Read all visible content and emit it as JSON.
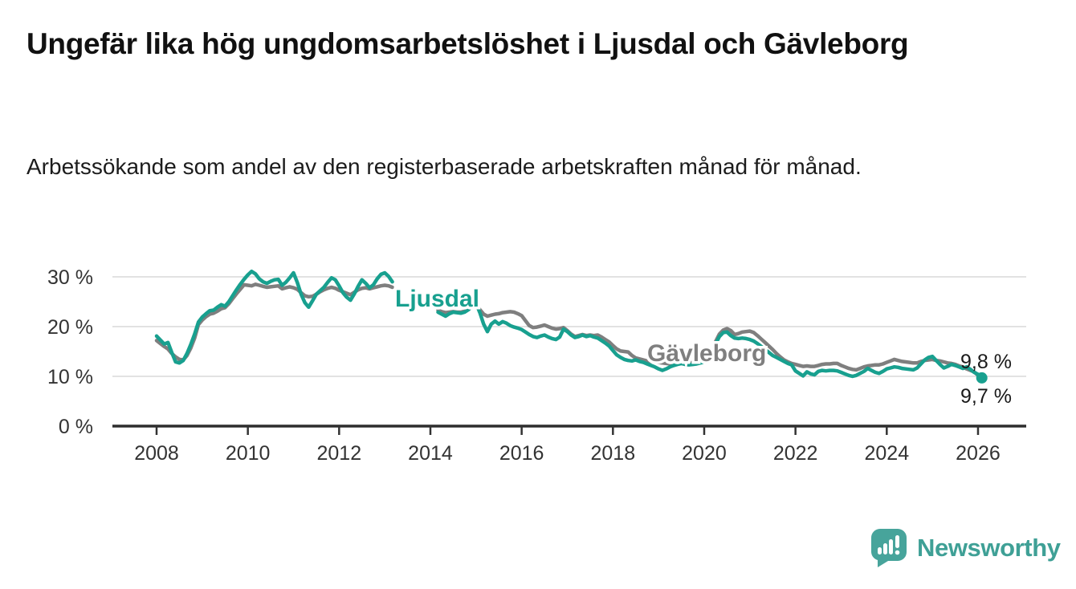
{
  "colors": {
    "ljusdal_accent": "#18a08f",
    "gavleborg_gray": "#7f7f7f",
    "title_text": "#111111",
    "axis_text": "#333333",
    "gridline": "#d9d9d9",
    "axis_line": "#2d2d2d",
    "value_label_text": "#1a1a1a",
    "logo_bubble": "#47a49b",
    "logo_text": "#3fa096"
  },
  "footer": {
    "brand": "Newsworthy",
    "logo_icon": "speech-bubble-bar-chart-icon"
  },
  "chart_data": {
    "type": "line",
    "title": "Ungefär lika hög ungdomsarbetslöshet i Ljusdal och Gävleborg",
    "subtitle": "Arbetssökande som andel av den registerbaserade arbetskraften månad för månad.",
    "x_start": "2008-01",
    "x_interval": "monthly",
    "x_tick_labels": [
      "2008",
      "2010",
      "2012",
      "2014",
      "2016",
      "2018",
      "2020",
      "2022",
      "2024",
      "2026"
    ],
    "y_tick_labels": [
      "30 %",
      "20 %",
      "10 %",
      "0 %"
    ],
    "y_tick_values": [
      30,
      20,
      10,
      0
    ],
    "ylim": [
      0,
      33
    ],
    "grid": "horizontal",
    "legend_position": "inline-labels",
    "data_gap": "2013-04 through 2014-02 has no data in either series",
    "series": [
      {
        "name": "Ljusdal",
        "color": "#18a08f",
        "end_label": "9,7 %",
        "values": [
          18.1,
          17.3,
          16.5,
          16.8,
          14.8,
          12.9,
          12.7,
          13.2,
          14.6,
          16.4,
          18.5,
          20.9,
          21.9,
          22.6,
          23.2,
          23.3,
          23.9,
          24.4,
          24.1,
          25.0,
          26.2,
          27.4,
          28.5,
          29.5,
          30.4,
          31.1,
          30.6,
          29.6,
          29.0,
          28.7,
          29.1,
          29.4,
          29.5,
          28.3,
          28.9,
          29.8,
          30.8,
          28.9,
          26.5,
          24.8,
          23.9,
          25.2,
          26.5,
          27.2,
          27.9,
          28.9,
          29.8,
          29.4,
          28.2,
          26.8,
          25.9,
          25.3,
          26.6,
          28.1,
          29.4,
          28.7,
          27.8,
          28.4,
          29.6,
          30.5,
          30.8,
          30.1,
          29.0,
          null,
          null,
          null,
          null,
          null,
          null,
          null,
          null,
          null,
          null,
          null,
          22.9,
          22.5,
          22.1,
          22.6,
          22.9,
          22.8,
          22.7,
          22.9,
          23.4,
          24.2,
          24.7,
          22.8,
          20.5,
          19.0,
          20.5,
          21.1,
          20.5,
          21.0,
          20.7,
          20.2,
          19.9,
          19.7,
          19.4,
          18.9,
          18.4,
          18.0,
          17.8,
          18.1,
          18.3,
          17.9,
          17.6,
          17.4,
          17.9,
          19.5,
          19.0,
          18.3,
          17.8,
          18.0,
          18.3,
          18.0,
          18.2,
          17.9,
          17.7,
          17.2,
          16.7,
          16.1,
          15.2,
          14.3,
          13.8,
          13.4,
          13.2,
          13.1,
          13.3,
          13.0,
          12.8,
          12.5,
          12.2,
          11.9,
          11.5,
          11.2,
          11.5,
          11.9,
          12.2,
          12.4,
          12.6,
          12.4,
          12.3,
          12.4,
          12.5,
          12.7,
          12.9,
          13.1,
          14.0,
          16.5,
          18.0,
          18.8,
          18.9,
          18.2,
          17.7,
          17.6,
          17.7,
          17.6,
          17.4,
          17.1,
          16.6,
          16.0,
          15.4,
          14.8,
          14.2,
          13.8,
          13.4,
          13.0,
          12.6,
          12.3,
          11.1,
          10.6,
          10.1,
          10.9,
          10.5,
          10.3,
          11.0,
          11.2,
          11.1,
          11.2,
          11.2,
          11.1,
          10.8,
          10.5,
          10.2,
          10.0,
          10.2,
          10.6,
          11.0,
          11.6,
          11.2,
          10.8,
          10.6,
          11.0,
          11.5,
          11.7,
          11.9,
          11.8,
          11.6,
          11.5,
          11.4,
          11.3,
          11.7,
          12.5,
          13.3,
          13.8,
          14.0,
          13.2,
          12.4,
          11.7,
          12.0,
          12.4,
          12.2,
          11.9,
          11.6,
          11.9,
          11.4,
          10.8,
          10.4,
          9.7
        ]
      },
      {
        "name": "Gävleborg",
        "color": "#7f7f7f",
        "end_label": "9,8 %",
        "values": [
          17.2,
          16.6,
          16.0,
          15.5,
          14.6,
          13.9,
          13.4,
          13.3,
          14.2,
          15.7,
          17.7,
          20.4,
          21.3,
          22.0,
          22.5,
          22.7,
          23.1,
          23.6,
          23.8,
          24.6,
          25.6,
          26.6,
          27.5,
          28.4,
          28.3,
          28.2,
          28.5,
          28.3,
          28.1,
          27.9,
          28.0,
          28.1,
          28.2,
          27.6,
          27.8,
          28.0,
          27.8,
          27.5,
          26.8,
          26.2,
          26.0,
          26.1,
          26.5,
          27.0,
          27.4,
          27.7,
          27.9,
          27.7,
          27.3,
          27.0,
          26.7,
          26.4,
          26.9,
          27.4,
          27.7,
          27.8,
          27.6,
          27.8,
          28.0,
          28.2,
          28.3,
          28.2,
          27.9,
          null,
          null,
          null,
          null,
          null,
          null,
          null,
          null,
          null,
          null,
          null,
          23.3,
          23.0,
          22.8,
          22.9,
          23.0,
          22.9,
          22.9,
          23.1,
          23.5,
          24.0,
          24.3,
          23.4,
          22.5,
          22.1,
          22.3,
          22.5,
          22.6,
          22.8,
          22.9,
          23.0,
          22.9,
          22.6,
          22.2,
          21.2,
          20.2,
          19.8,
          19.9,
          20.1,
          20.3,
          20.0,
          19.7,
          19.5,
          19.6,
          19.8,
          19.2,
          18.5,
          18.0,
          18.2,
          18.4,
          18.2,
          18.3,
          18.2,
          18.3,
          17.9,
          17.4,
          16.9,
          16.2,
          15.5,
          15.1,
          15.0,
          14.9,
          14.2,
          13.7,
          13.5,
          13.3,
          13.1,
          13.0,
          12.9,
          12.8,
          12.7,
          12.6,
          12.5,
          12.5,
          12.5,
          12.6,
          12.6,
          12.7,
          12.8,
          13.0,
          13.2,
          13.4,
          13.6,
          14.5,
          17.0,
          18.5,
          19.3,
          19.6,
          19.2,
          18.4,
          18.6,
          18.9,
          19.0,
          19.1,
          18.8,
          18.2,
          17.5,
          16.8,
          16.1,
          15.4,
          14.6,
          13.9,
          13.3,
          12.9,
          12.6,
          12.4,
          12.2,
          12.0,
          12.1,
          12.0,
          12.0,
          12.2,
          12.4,
          12.5,
          12.5,
          12.6,
          12.6,
          12.2,
          11.9,
          11.6,
          11.4,
          11.3,
          11.6,
          11.9,
          12.1,
          12.2,
          12.3,
          12.3,
          12.5,
          12.8,
          13.1,
          13.4,
          13.2,
          13.0,
          12.9,
          12.8,
          12.7,
          12.7,
          13.0,
          13.2,
          13.3,
          13.4,
          13.2,
          13.1,
          12.9,
          12.7,
          12.6,
          12.4,
          12.1,
          11.9,
          11.5,
          11.2,
          10.9,
          10.2,
          9.8
        ]
      }
    ]
  }
}
